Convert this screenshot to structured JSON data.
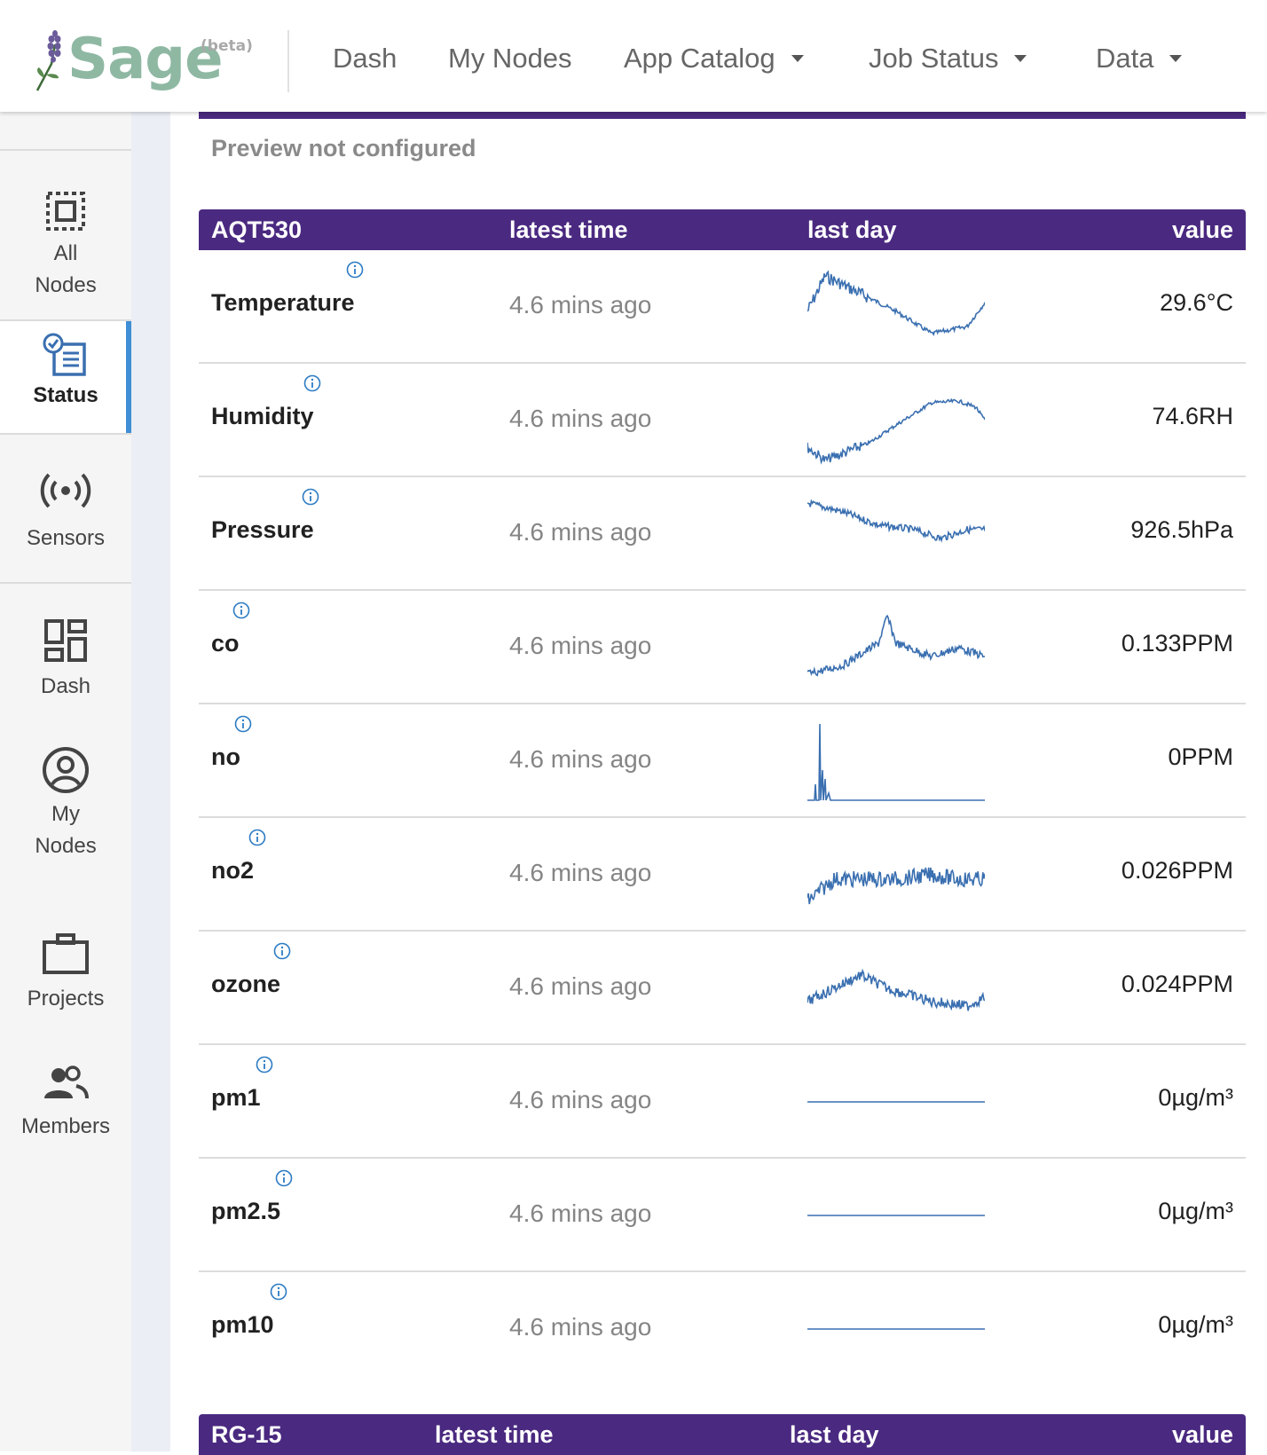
{
  "header": {
    "logo_text": "Sage",
    "logo_badge": "(beta)",
    "nav": [
      {
        "label": "Dash",
        "dropdown": false
      },
      {
        "label": "My Nodes",
        "dropdown": false
      },
      {
        "label": "App Catalog",
        "dropdown": true
      },
      {
        "label": "Job Status",
        "dropdown": true
      },
      {
        "label": "Data",
        "dropdown": true
      }
    ]
  },
  "sidebar": {
    "items": [
      {
        "label": "All Nodes",
        "icon": "all-nodes-icon"
      },
      {
        "label": "Status",
        "icon": "status-icon",
        "active": true
      },
      {
        "label": "Sensors",
        "icon": "sensors-icon"
      },
      {
        "label": "Dash",
        "icon": "dash-icon"
      },
      {
        "label": "My Nodes",
        "icon": "my-nodes-icon"
      },
      {
        "label": "Projects",
        "icon": "projects-icon"
      },
      {
        "label": "Members",
        "icon": "members-icon"
      }
    ]
  },
  "main": {
    "preview_text": "Preview not configured",
    "tables": [
      {
        "columns": [
          "AQT530",
          "latest time",
          "last day",
          "value"
        ],
        "rows": [
          {
            "name": "Temperature",
            "time": "4.6 mins ago",
            "value": "29.6°C",
            "trend": "temperature"
          },
          {
            "name": "Humidity",
            "time": "4.6 mins ago",
            "value": "74.6RH",
            "trend": "humidity"
          },
          {
            "name": "Pressure",
            "time": "4.6 mins ago",
            "value": "926.5hPa",
            "trend": "pressure"
          },
          {
            "name": "co",
            "time": "4.6 mins ago",
            "value": "0.133PPM",
            "trend": "co"
          },
          {
            "name": "no",
            "time": "4.6 mins ago",
            "value": "0PPM",
            "trend": "no"
          },
          {
            "name": "no2",
            "time": "4.6 mins ago",
            "value": "0.026PPM",
            "trend": "no2"
          },
          {
            "name": "ozone",
            "time": "4.6 mins ago",
            "value": "0.024PPM",
            "trend": "ozone"
          },
          {
            "name": "pm1",
            "time": "4.6 mins ago",
            "value": "0µg/m³",
            "trend": "flat"
          },
          {
            "name": "pm2.5",
            "time": "4.6 mins ago",
            "value": "0µg/m³",
            "trend": "flat"
          },
          {
            "name": "pm10",
            "time": "4.6 mins ago",
            "value": "0µg/m³",
            "trend": "flat"
          }
        ]
      },
      {
        "columns": [
          "RG-15",
          "latest time",
          "last day",
          "value"
        ],
        "rows": []
      }
    ]
  },
  "colors": {
    "header_purple": "#4a2980",
    "logo_green": "#8fb8a3",
    "sparkline_blue": "#3a6fb0",
    "info_blue": "#2d7bc4",
    "active_blue": "#3f8ed6"
  }
}
